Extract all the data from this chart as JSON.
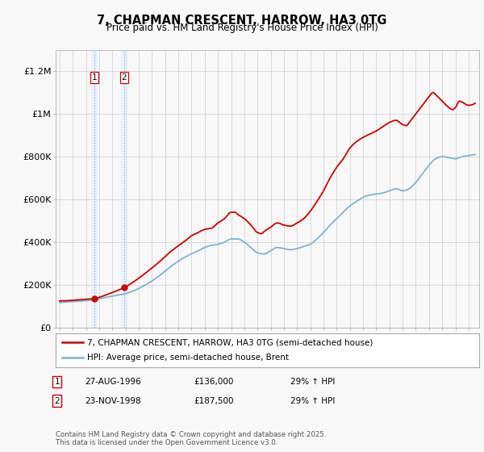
{
  "title": "7, CHAPMAN CRESCENT, HARROW, HA3 0TG",
  "subtitle": "Price paid vs. HM Land Registry's House Price Index (HPI)",
  "red_label": "7, CHAPMAN CRESCENT, HARROW, HA3 0TG (semi-detached house)",
  "blue_label": "HPI: Average price, semi-detached house, Brent",
  "footer": "Contains HM Land Registry data © Crown copyright and database right 2025.\nThis data is licensed under the Open Government Licence v3.0.",
  "table": [
    {
      "num": "1",
      "date": "27-AUG-1996",
      "price": "£136,000",
      "note": "29% ↑ HPI"
    },
    {
      "num": "2",
      "date": "23-NOV-1998",
      "price": "£187,500",
      "note": "29% ↑ HPI"
    }
  ],
  "sale_dates": [
    1996.65,
    1998.9
  ],
  "sale_prices": [
    136000,
    187500
  ],
  "ylim": [
    0,
    1300000
  ],
  "yticks": [
    0,
    200000,
    400000,
    600000,
    800000,
    1000000,
    1200000
  ],
  "ytick_labels": [
    "£0",
    "£200K",
    "£400K",
    "£600K",
    "£800K",
    "£1M",
    "£1.2M"
  ],
  "red_color": "#cc0000",
  "blue_color": "#7fb3d3",
  "background_color": "#f8f8f8",
  "grid_color": "#cccccc",
  "shade_color": "#ddeeff",
  "xlim_left": 1993.7,
  "xlim_right": 2025.8
}
